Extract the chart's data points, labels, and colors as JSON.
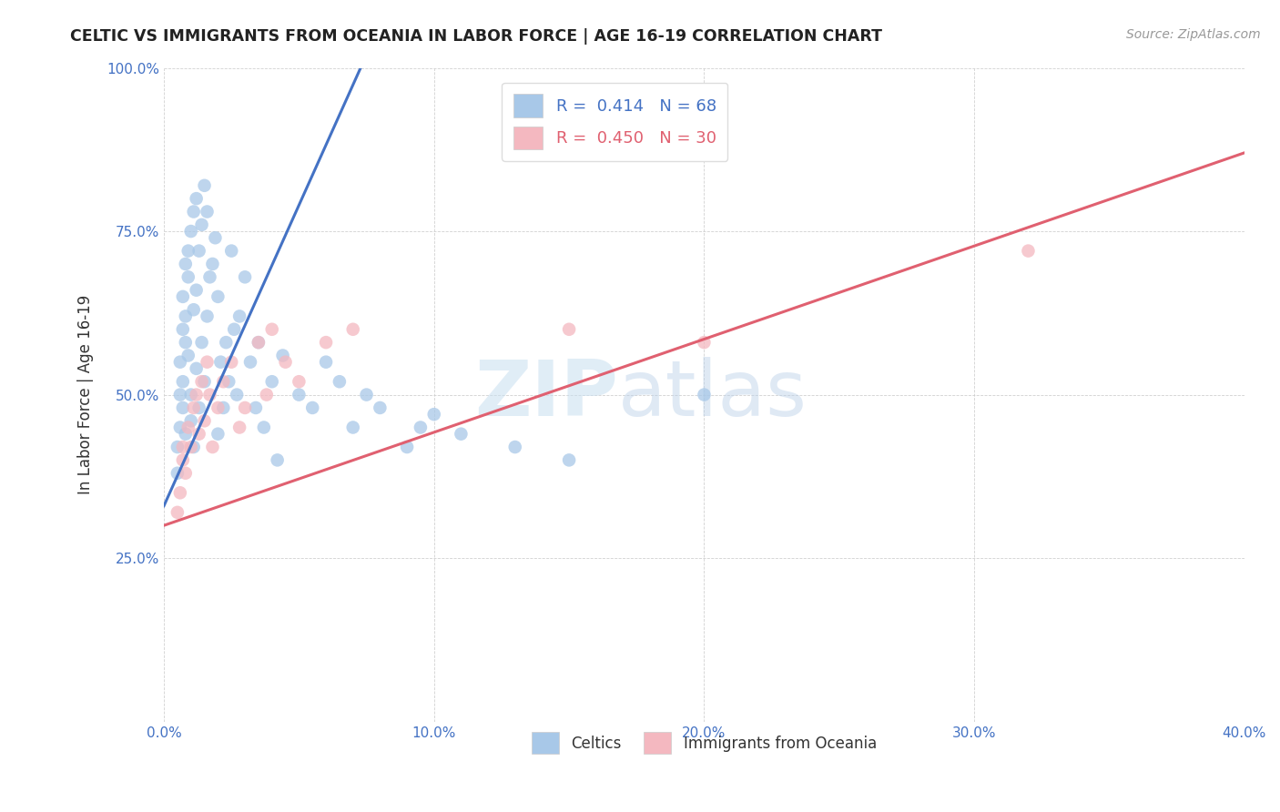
{
  "title": "CELTIC VS IMMIGRANTS FROM OCEANIA IN LABOR FORCE | AGE 16-19 CORRELATION CHART",
  "source": "Source: ZipAtlas.com",
  "ylabel": "In Labor Force | Age 16-19",
  "xlim": [
    0.0,
    0.4
  ],
  "ylim": [
    0.0,
    1.0
  ],
  "xticks": [
    0.0,
    0.1,
    0.2,
    0.3,
    0.4
  ],
  "xticklabels": [
    "0.0%",
    "10.0%",
    "20.0%",
    "30.0%",
    "40.0%"
  ],
  "yticks": [
    0.0,
    0.25,
    0.5,
    0.75,
    1.0
  ],
  "yticklabels": [
    "",
    "25.0%",
    "50.0%",
    "75.0%",
    "100.0%"
  ],
  "celtics_R": 0.414,
  "celtics_N": 68,
  "oceania_R": 0.45,
  "oceania_N": 30,
  "celtics_color": "#a8c8e8",
  "oceania_color": "#f4b8c0",
  "celtics_line_color": "#4472c4",
  "oceania_line_color": "#e06070",
  "legend_celtics_label": "Celtics",
  "legend_oceania_label": "Immigrants from Oceania",
  "watermark_zip": "ZIP",
  "watermark_atlas": "atlas",
  "celtics_x": [
    0.005,
    0.005,
    0.006,
    0.006,
    0.006,
    0.007,
    0.007,
    0.007,
    0.007,
    0.008,
    0.008,
    0.008,
    0.008,
    0.009,
    0.009,
    0.009,
    0.01,
    0.01,
    0.01,
    0.011,
    0.011,
    0.011,
    0.012,
    0.012,
    0.012,
    0.013,
    0.013,
    0.014,
    0.014,
    0.015,
    0.015,
    0.016,
    0.016,
    0.017,
    0.018,
    0.019,
    0.02,
    0.02,
    0.021,
    0.022,
    0.023,
    0.024,
    0.025,
    0.026,
    0.027,
    0.028,
    0.03,
    0.032,
    0.034,
    0.035,
    0.037,
    0.04,
    0.042,
    0.044,
    0.05,
    0.055,
    0.06,
    0.065,
    0.07,
    0.075,
    0.08,
    0.09,
    0.095,
    0.1,
    0.11,
    0.13,
    0.15,
    0.2
  ],
  "celtics_y": [
    0.38,
    0.42,
    0.5,
    0.55,
    0.45,
    0.6,
    0.65,
    0.48,
    0.52,
    0.7,
    0.58,
    0.62,
    0.44,
    0.68,
    0.72,
    0.56,
    0.75,
    0.5,
    0.46,
    0.78,
    0.63,
    0.42,
    0.8,
    0.66,
    0.54,
    0.72,
    0.48,
    0.76,
    0.58,
    0.82,
    0.52,
    0.78,
    0.62,
    0.68,
    0.7,
    0.74,
    0.65,
    0.44,
    0.55,
    0.48,
    0.58,
    0.52,
    0.72,
    0.6,
    0.5,
    0.62,
    0.68,
    0.55,
    0.48,
    0.58,
    0.45,
    0.52,
    0.4,
    0.56,
    0.5,
    0.48,
    0.55,
    0.52,
    0.45,
    0.5,
    0.48,
    0.42,
    0.45,
    0.47,
    0.44,
    0.42,
    0.4,
    0.5
  ],
  "oceania_x": [
    0.005,
    0.006,
    0.007,
    0.007,
    0.008,
    0.009,
    0.01,
    0.011,
    0.012,
    0.013,
    0.014,
    0.015,
    0.016,
    0.017,
    0.018,
    0.02,
    0.022,
    0.025,
    0.028,
    0.03,
    0.035,
    0.038,
    0.04,
    0.045,
    0.05,
    0.06,
    0.07,
    0.15,
    0.2,
    0.32
  ],
  "oceania_y": [
    0.32,
    0.35,
    0.4,
    0.42,
    0.38,
    0.45,
    0.42,
    0.48,
    0.5,
    0.44,
    0.52,
    0.46,
    0.55,
    0.5,
    0.42,
    0.48,
    0.52,
    0.55,
    0.45,
    0.48,
    0.58,
    0.5,
    0.6,
    0.55,
    0.52,
    0.58,
    0.6,
    0.6,
    0.58,
    0.72
  ]
}
